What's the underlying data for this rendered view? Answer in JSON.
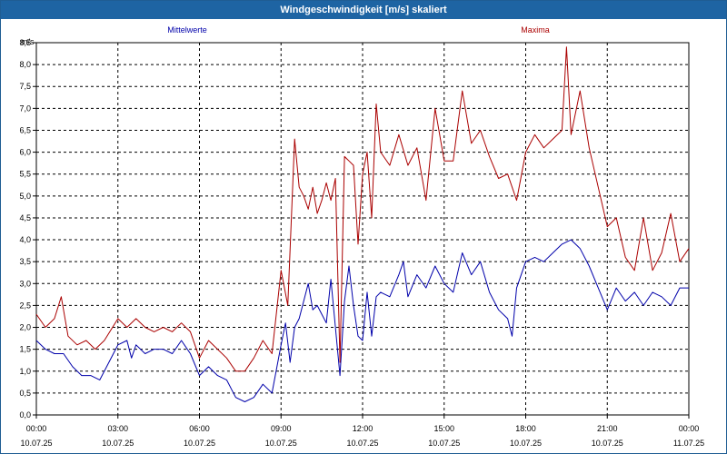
{
  "window": {
    "title": "Windgeschwindigkeit [m/s] skaliert"
  },
  "chart_data": {
    "type": "line",
    "title": "Windgeschwindigkeit [m/s] skaliert",
    "ylabel": "m/s",
    "ylim": [
      0,
      8.5
    ],
    "xlim": [
      "2025-07-10 00:00",
      "2025-07-11 00:00"
    ],
    "grid": true,
    "y_ticks": [
      "0,0",
      "0,5",
      "1,0",
      "1,5",
      "2,0",
      "2,5",
      "3,0",
      "3,5",
      "4,0",
      "4,5",
      "5,0",
      "5,5",
      "6,0",
      "6,5",
      "7,0",
      "7,5",
      "8,0",
      "8,5"
    ],
    "x_ticks": [
      {
        "time": "00:00",
        "date": "10.07.25"
      },
      {
        "time": "03:00",
        "date": "10.07.25"
      },
      {
        "time": "06:00",
        "date": "10.07.25"
      },
      {
        "time": "09:00",
        "date": "10.07.25"
      },
      {
        "time": "12:00",
        "date": "10.07.25"
      },
      {
        "time": "15:00",
        "date": "10.07.25"
      },
      {
        "time": "18:00",
        "date": "10.07.25"
      },
      {
        "time": "21:00",
        "date": "10.07.25"
      },
      {
        "time": "00:00",
        "date": "11.07.25"
      }
    ],
    "series": [
      {
        "name": "Mittelwerte",
        "color": "#0000aa",
        "points": [
          [
            "2025-07-10 00:00",
            1.7
          ],
          [
            "2025-07-10 00:20",
            1.5
          ],
          [
            "2025-07-10 00:40",
            1.4
          ],
          [
            "2025-07-10 01:00",
            1.4
          ],
          [
            "2025-07-10 01:20",
            1.1
          ],
          [
            "2025-07-10 01:40",
            0.9
          ],
          [
            "2025-07-10 02:00",
            0.9
          ],
          [
            "2025-07-10 02:20",
            0.8
          ],
          [
            "2025-07-10 02:40",
            1.2
          ],
          [
            "2025-07-10 03:00",
            1.6
          ],
          [
            "2025-07-10 03:20",
            1.7
          ],
          [
            "2025-07-10 03:30",
            1.3
          ],
          [
            "2025-07-10 03:40",
            1.6
          ],
          [
            "2025-07-10 04:00",
            1.4
          ],
          [
            "2025-07-10 04:20",
            1.5
          ],
          [
            "2025-07-10 04:40",
            1.5
          ],
          [
            "2025-07-10 05:00",
            1.4
          ],
          [
            "2025-07-10 05:20",
            1.7
          ],
          [
            "2025-07-10 05:40",
            1.4
          ],
          [
            "2025-07-10 06:00",
            0.9
          ],
          [
            "2025-07-10 06:20",
            1.1
          ],
          [
            "2025-07-10 06:40",
            0.9
          ],
          [
            "2025-07-10 07:00",
            0.8
          ],
          [
            "2025-07-10 07:20",
            0.4
          ],
          [
            "2025-07-10 07:40",
            0.3
          ],
          [
            "2025-07-10 08:00",
            0.4
          ],
          [
            "2025-07-10 08:20",
            0.7
          ],
          [
            "2025-07-10 08:40",
            0.5
          ],
          [
            "2025-07-10 09:00",
            1.6
          ],
          [
            "2025-07-10 09:10",
            2.1
          ],
          [
            "2025-07-10 09:20",
            1.2
          ],
          [
            "2025-07-10 09:30",
            2.0
          ],
          [
            "2025-07-10 09:40",
            2.2
          ],
          [
            "2025-07-10 09:50",
            2.6
          ],
          [
            "2025-07-10 10:00",
            3.0
          ],
          [
            "2025-07-10 10:10",
            2.4
          ],
          [
            "2025-07-10 10:20",
            2.5
          ],
          [
            "2025-07-10 10:30",
            2.3
          ],
          [
            "2025-07-10 10:40",
            2.1
          ],
          [
            "2025-07-10 10:50",
            3.1
          ],
          [
            "2025-07-10 11:00",
            2.0
          ],
          [
            "2025-07-10 11:10",
            0.9
          ],
          [
            "2025-07-10 11:20",
            2.6
          ],
          [
            "2025-07-10 11:30",
            3.4
          ],
          [
            "2025-07-10 11:40",
            2.5
          ],
          [
            "2025-07-10 11:50",
            1.8
          ],
          [
            "2025-07-10 12:00",
            1.7
          ],
          [
            "2025-07-10 12:10",
            2.8
          ],
          [
            "2025-07-10 12:20",
            1.8
          ],
          [
            "2025-07-10 12:30",
            2.7
          ],
          [
            "2025-07-10 12:40",
            2.8
          ],
          [
            "2025-07-10 13:00",
            2.7
          ],
          [
            "2025-07-10 13:20",
            3.2
          ],
          [
            "2025-07-10 13:30",
            3.5
          ],
          [
            "2025-07-10 13:40",
            2.7
          ],
          [
            "2025-07-10 14:00",
            3.2
          ],
          [
            "2025-07-10 14:20",
            2.9
          ],
          [
            "2025-07-10 14:40",
            3.4
          ],
          [
            "2025-07-10 15:00",
            3.0
          ],
          [
            "2025-07-10 15:20",
            2.8
          ],
          [
            "2025-07-10 15:40",
            3.7
          ],
          [
            "2025-07-10 16:00",
            3.2
          ],
          [
            "2025-07-10 16:20",
            3.5
          ],
          [
            "2025-07-10 16:40",
            2.8
          ],
          [
            "2025-07-10 17:00",
            2.4
          ],
          [
            "2025-07-10 17:20",
            2.2
          ],
          [
            "2025-07-10 17:30",
            1.8
          ],
          [
            "2025-07-10 17:40",
            2.9
          ],
          [
            "2025-07-10 18:00",
            3.5
          ],
          [
            "2025-07-10 18:20",
            3.6
          ],
          [
            "2025-07-10 18:40",
            3.5
          ],
          [
            "2025-07-10 19:00",
            3.7
          ],
          [
            "2025-07-10 19:20",
            3.9
          ],
          [
            "2025-07-10 19:40",
            4.0
          ],
          [
            "2025-07-10 20:00",
            3.8
          ],
          [
            "2025-07-10 20:20",
            3.4
          ],
          [
            "2025-07-10 20:40",
            2.9
          ],
          [
            "2025-07-10 21:00",
            2.4
          ],
          [
            "2025-07-10 21:20",
            2.9
          ],
          [
            "2025-07-10 21:40",
            2.6
          ],
          [
            "2025-07-10 22:00",
            2.8
          ],
          [
            "2025-07-10 22:20",
            2.5
          ],
          [
            "2025-07-10 22:40",
            2.8
          ],
          [
            "2025-07-10 23:00",
            2.7
          ],
          [
            "2025-07-10 23:20",
            2.5
          ],
          [
            "2025-07-10 23:40",
            2.9
          ],
          [
            "2025-07-11 00:00",
            2.9
          ]
        ]
      },
      {
        "name": "Maxima",
        "color": "#aa0000",
        "points": [
          [
            "2025-07-10 00:00",
            2.3
          ],
          [
            "2025-07-10 00:20",
            2.0
          ],
          [
            "2025-07-10 00:40",
            2.2
          ],
          [
            "2025-07-10 00:55",
            2.7
          ],
          [
            "2025-07-10 01:10",
            1.8
          ],
          [
            "2025-07-10 01:30",
            1.6
          ],
          [
            "2025-07-10 01:50",
            1.7
          ],
          [
            "2025-07-10 02:10",
            1.5
          ],
          [
            "2025-07-10 02:30",
            1.7
          ],
          [
            "2025-07-10 03:00",
            2.2
          ],
          [
            "2025-07-10 03:20",
            2.0
          ],
          [
            "2025-07-10 03:40",
            2.2
          ],
          [
            "2025-07-10 04:00",
            2.0
          ],
          [
            "2025-07-10 04:20",
            1.9
          ],
          [
            "2025-07-10 04:40",
            2.0
          ],
          [
            "2025-07-10 05:00",
            1.9
          ],
          [
            "2025-07-10 05:20",
            2.1
          ],
          [
            "2025-07-10 05:40",
            1.9
          ],
          [
            "2025-07-10 06:00",
            1.3
          ],
          [
            "2025-07-10 06:20",
            1.7
          ],
          [
            "2025-07-10 06:40",
            1.5
          ],
          [
            "2025-07-10 07:00",
            1.3
          ],
          [
            "2025-07-10 07:20",
            1.0
          ],
          [
            "2025-07-10 07:40",
            1.0
          ],
          [
            "2025-07-10 08:00",
            1.3
          ],
          [
            "2025-07-10 08:20",
            1.7
          ],
          [
            "2025-07-10 08:40",
            1.4
          ],
          [
            "2025-07-10 09:00",
            3.3
          ],
          [
            "2025-07-10 09:15",
            2.5
          ],
          [
            "2025-07-10 09:30",
            6.3
          ],
          [
            "2025-07-10 09:40",
            5.2
          ],
          [
            "2025-07-10 09:50",
            5.0
          ],
          [
            "2025-07-10 10:00",
            4.7
          ],
          [
            "2025-07-10 10:10",
            5.2
          ],
          [
            "2025-07-10 10:20",
            4.6
          ],
          [
            "2025-07-10 10:30",
            4.9
          ],
          [
            "2025-07-10 10:40",
            5.3
          ],
          [
            "2025-07-10 10:50",
            4.9
          ],
          [
            "2025-07-10 11:00",
            5.4
          ],
          [
            "2025-07-10 11:10",
            1.2
          ],
          [
            "2025-07-10 11:20",
            5.9
          ],
          [
            "2025-07-10 11:30",
            5.8
          ],
          [
            "2025-07-10 11:40",
            5.7
          ],
          [
            "2025-07-10 11:50",
            3.9
          ],
          [
            "2025-07-10 12:00",
            5.5
          ],
          [
            "2025-07-10 12:10",
            6.0
          ],
          [
            "2025-07-10 12:20",
            4.5
          ],
          [
            "2025-07-10 12:30",
            7.1
          ],
          [
            "2025-07-10 12:40",
            6.0
          ],
          [
            "2025-07-10 13:00",
            5.7
          ],
          [
            "2025-07-10 13:20",
            6.4
          ],
          [
            "2025-07-10 13:40",
            5.7
          ],
          [
            "2025-07-10 14:00",
            6.1
          ],
          [
            "2025-07-10 14:20",
            4.9
          ],
          [
            "2025-07-10 14:40",
            7.0
          ],
          [
            "2025-07-10 15:00",
            5.8
          ],
          [
            "2025-07-10 15:20",
            5.8
          ],
          [
            "2025-07-10 15:40",
            7.4
          ],
          [
            "2025-07-10 16:00",
            6.2
          ],
          [
            "2025-07-10 16:20",
            6.5
          ],
          [
            "2025-07-10 16:40",
            5.9
          ],
          [
            "2025-07-10 17:00",
            5.4
          ],
          [
            "2025-07-10 17:20",
            5.5
          ],
          [
            "2025-07-10 17:40",
            4.9
          ],
          [
            "2025-07-10 18:00",
            6.0
          ],
          [
            "2025-07-10 18:20",
            6.4
          ],
          [
            "2025-07-10 18:40",
            6.1
          ],
          [
            "2025-07-10 19:00",
            6.3
          ],
          [
            "2025-07-10 19:20",
            6.5
          ],
          [
            "2025-07-10 19:30",
            8.4
          ],
          [
            "2025-07-10 19:40",
            6.4
          ],
          [
            "2025-07-10 20:00",
            7.4
          ],
          [
            "2025-07-10 20:20",
            6.1
          ],
          [
            "2025-07-10 20:40",
            5.2
          ],
          [
            "2025-07-10 21:00",
            4.3
          ],
          [
            "2025-07-10 21:20",
            4.5
          ],
          [
            "2025-07-10 21:40",
            3.6
          ],
          [
            "2025-07-10 22:00",
            3.3
          ],
          [
            "2025-07-10 22:20",
            4.5
          ],
          [
            "2025-07-10 22:40",
            3.3
          ],
          [
            "2025-07-10 23:00",
            3.7
          ],
          [
            "2025-07-10 23:20",
            4.6
          ],
          [
            "2025-07-10 23:40",
            3.5
          ],
          [
            "2025-07-11 00:00",
            3.8
          ]
        ]
      }
    ]
  }
}
